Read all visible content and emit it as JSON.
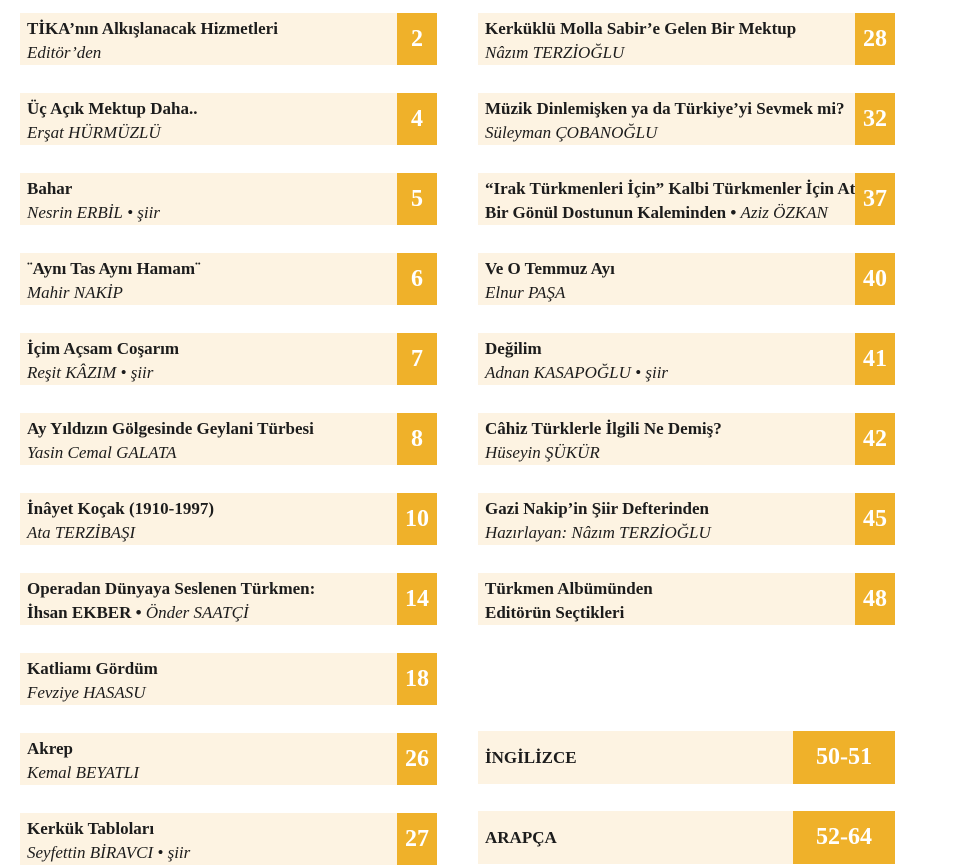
{
  "contents": {
    "left": [
      {
        "title": "TİKA’nın Alkışlanacak Hizmetleri",
        "author": "Editör’den",
        "page": 2
      },
      {
        "title": "Üç Açık Mektup Daha..",
        "author": "Erşat HÜRMÜZLÜ",
        "page": 4
      },
      {
        "title": "Bahar",
        "author": "Nesrin ERBİL",
        "note": "• şiir",
        "page": 5
      },
      {
        "title": "¨Aynı Tas Aynı Hamam¨",
        "author": "Mahir NAKİP",
        "page": 6
      },
      {
        "title": "İçim Açsam Coşarım",
        "author": "Reşit KÂZIM",
        "note": "• şiir",
        "page": 7
      },
      {
        "title": "Ay Yıldızın Gölgesinde Geylani Türbesi",
        "author": "Yasin Cemal GALATA",
        "page": 8
      },
      {
        "title": "İnâyet Koçak (1910-1997)",
        "author": "Ata TERZİBAŞI",
        "page": 10
      },
      {
        "title": "Operadan Dünyaya Seslenen Türkmen:",
        "title2": "İhsan EKBER •",
        "author": "Önder SAATÇİ",
        "page": 14
      },
      {
        "title": "Katliamı Gördüm",
        "author": "Fevziye HASASU",
        "page": 18
      },
      {
        "title": "Akrep",
        "author": "Kemal BEYATLI",
        "page": 26
      },
      {
        "title": "Kerkük Tabloları",
        "author": "Seyfettin BİRAVCI",
        "note": "• şiir",
        "page": 27
      }
    ],
    "right": [
      {
        "title": "Kerküklü Molla Sabir’e Gelen Bir Mektup",
        "author": "Nâzım TERZİOĞLU",
        "page": 28
      },
      {
        "title": "Müzik Dinlemişken ya da Türkiye’yi Sevmek mi?",
        "author": "Süleyman ÇOBANOĞLU",
        "page": 32
      },
      {
        "title": "“Irak Türkmenleri İçin” Kalbi Türkmenler İçin Atan",
        "title2": "Bir Gönül Dostunun Kaleminden •",
        "author": "Aziz ÖZKAN",
        "page": 37
      },
      {
        "title": "Ve O Temmuz Ayı",
        "author": "Elnur PAŞA",
        "page": 40
      },
      {
        "title": "Değilim",
        "author": "Adnan KASAPOĞLU",
        "note": "• şiir",
        "page": 41
      },
      {
        "title": "Câhiz Türklerle İlgili Ne Demiş?",
        "author": "Hüseyin ŞÜKÜR",
        "page": 42
      },
      {
        "title": "Gazi Nakip’in Şiir Defterinden",
        "author": "Hazırlayan: Nâzım TERZİOĞLU",
        "page": 45
      },
      {
        "title": "Türkmen Albümünden",
        "title2": "Editörün Seçtikleri",
        "page": 48
      }
    ],
    "sections": [
      {
        "title": "İNGİLİZCE",
        "page": "50-51"
      },
      {
        "title": "ARAPÇA",
        "page": "52-64"
      }
    ]
  }
}
